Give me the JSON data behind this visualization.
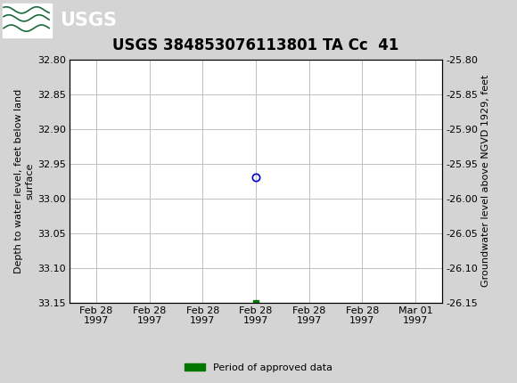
{
  "title": "USGS 384853076113801 TA Cc  41",
  "ylabel_left": "Depth to water level, feet below land\nsurface",
  "ylabel_right": "Groundwater level above NGVD 1929, feet",
  "ylim_left": [
    33.15,
    32.8
  ],
  "ylim_right": [
    -26.15,
    -25.8
  ],
  "yticks_left": [
    32.8,
    32.85,
    32.9,
    32.95,
    33.0,
    33.05,
    33.1,
    33.15
  ],
  "yticks_right": [
    -25.8,
    -25.85,
    -25.9,
    -25.95,
    -26.0,
    -26.05,
    -26.1,
    -26.15
  ],
  "ytick_labels_left": [
    "32.80",
    "32.85",
    "32.90",
    "32.95",
    "33.00",
    "33.05",
    "33.10",
    "33.15"
  ],
  "ytick_labels_right": [
    "-25.80",
    "-25.85",
    "-25.90",
    "-25.95",
    "-26.00",
    "-26.05",
    "-26.10",
    "-26.15"
  ],
  "data_point_x": 3,
  "data_point_y": 32.97,
  "data_point_color": "#0000cc",
  "green_square_x": 3,
  "green_square_y": 33.15,
  "green_square_color": "#007700",
  "header_color": "#1a6b3c",
  "header_text_color": "#ffffff",
  "background_color": "#d4d4d4",
  "plot_bg_color": "#ffffff",
  "grid_color": "#c0c0c0",
  "legend_label": "Period of approved data",
  "legend_color": "#007700",
  "xtick_positions": [
    0,
    1,
    2,
    3,
    4,
    5,
    6
  ],
  "xtick_labels": [
    "Feb 28\n1997",
    "Feb 28\n1997",
    "Feb 28\n1997",
    "Feb 28\n1997",
    "Feb 28\n1997",
    "Feb 28\n1997",
    "Mar 01\n1997"
  ],
  "xlim": [
    -0.5,
    6.5
  ],
  "title_fontsize": 12,
  "axis_label_fontsize": 8,
  "tick_fontsize": 8
}
